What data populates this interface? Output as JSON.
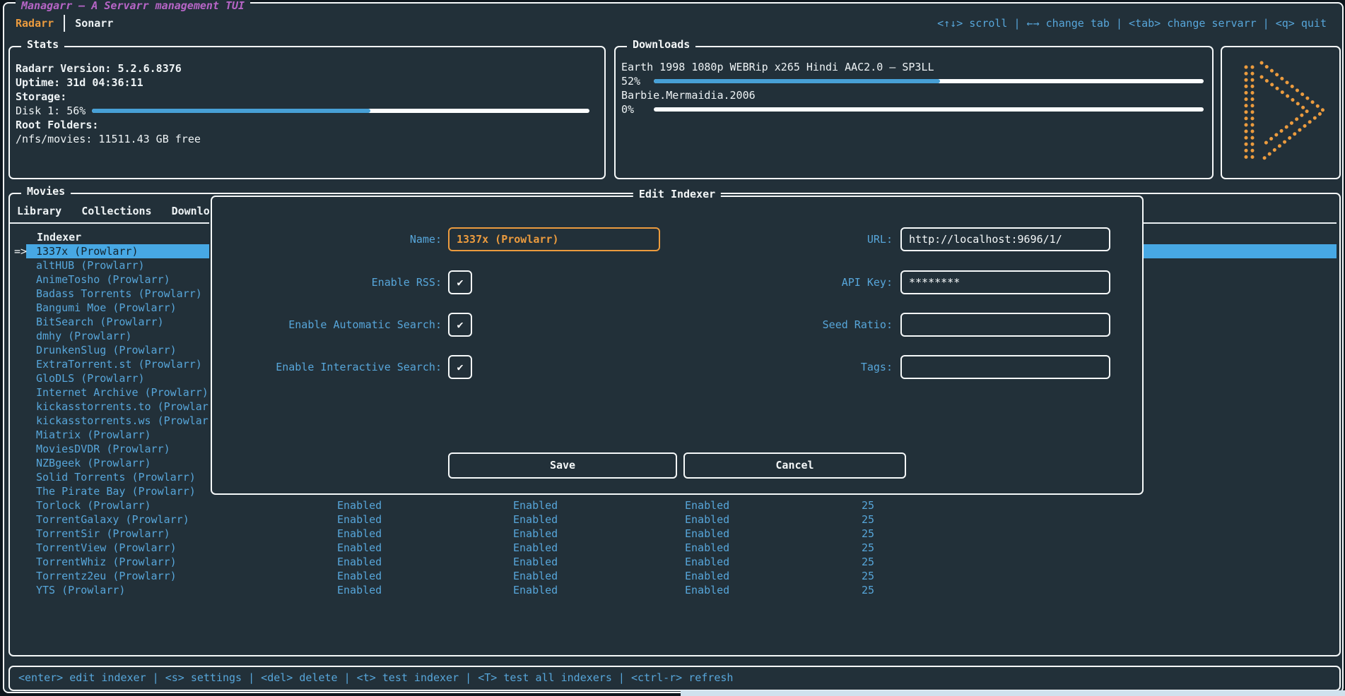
{
  "app": {
    "title": "Managarr – A Servarr management TUI",
    "tabs": [
      {
        "label": "Radarr",
        "active": true
      },
      {
        "label": "Sonarr",
        "active": false
      }
    ],
    "top_keybinds": "<↑↓> scroll | ←→ change tab | <tab> change servarr | <q> quit"
  },
  "stats": {
    "panel_title": "Stats",
    "version_line": "Radarr Version:  5.2.6.8376",
    "uptime_line": "Uptime: 31d 04:36:11",
    "storage_label": "Storage:",
    "disk_line": "Disk 1: 56%",
    "disk_percent": 56,
    "root_folders_label": "Root Folders:",
    "root_folder_line": "/nfs/movies: 11511.43 GB free"
  },
  "downloads": {
    "panel_title": "Downloads",
    "items": [
      {
        "name": "Earth 1998 1080p WEBRip x265 Hindi AAC2.0 – SP3LL",
        "percent_label": "52%",
        "percent": 52
      },
      {
        "name": "Barbie.Mermaidia.2006",
        "percent_label": "0%",
        "percent": 0
      }
    ]
  },
  "movies": {
    "panel_title": "Movies",
    "tabs": [
      "Library",
      "Collections",
      "Downlo"
    ],
    "table": {
      "indexer_header": "Indexer",
      "selection_marker": "=>",
      "selected_index": 0,
      "rows": [
        "1337x (Prowlarr)",
        "altHUB (Prowlarr)",
        "AnimeTosho (Prowlarr)",
        "Badass Torrents (Prowlarr)",
        "Bangumi Moe (Prowlarr)",
        "BitSearch (Prowlarr)",
        "dmhy (Prowlarr)",
        "DrunkenSlug (Prowlarr)",
        "ExtraTorrent.st (Prowlarr)",
        "GloDLS (Prowlarr)",
        "Internet Archive (Prowlarr)",
        "kickasstorrents.to (Prowlarr)",
        "kickasstorrents.ws (Prowlarr)",
        "Miatrix (Prowlarr)",
        "MoviesDVDR (Prowlarr)",
        "NZBgeek (Prowlarr)",
        "Solid Torrents (Prowlarr)",
        "The Pirate Bay (Prowlarr)",
        "Torlock (Prowlarr)",
        "TorrentGalaxy (Prowlarr)",
        "TorrentSir (Prowlarr)",
        "TorrentView (Prowlarr)",
        "TorrentWhiz (Prowlarr)",
        "Torrentz2eu (Prowlarr)",
        "YTS (Prowlarr)"
      ],
      "columns": {
        "rss": "Enabled",
        "automatic_search": "Enabled",
        "interactive_search": "Enabled",
        "priority": "25"
      },
      "columns_visible_from": 18
    }
  },
  "modal": {
    "title": "Edit Indexer",
    "fields": {
      "name": {
        "label": "Name:",
        "value": "1337x (Prowlarr)"
      },
      "url": {
        "label": "URL:",
        "value": "http://localhost:9696/1/"
      },
      "enable_rss": {
        "label": "Enable RSS:",
        "check": "✔"
      },
      "api_key": {
        "label": "API Key:",
        "value": "********"
      },
      "enable_automatic_search": {
        "label": "Enable Automatic Search:",
        "check": "✔"
      },
      "seed_ratio": {
        "label": "Seed Ratio:",
        "value": ""
      },
      "enable_interactive_search": {
        "label": "Enable Interactive Search:",
        "check": "✔"
      },
      "tags": {
        "label": "Tags:",
        "value": ""
      }
    },
    "buttons": {
      "save": "Save",
      "cancel": "Cancel"
    }
  },
  "footer": {
    "keybinds": "<enter> edit indexer | <s> settings | <del> delete | <t> test indexer | <T> test all indexers | <ctrl-r> refresh"
  },
  "colors": {
    "background": "#223039",
    "border": "#f6f9fa",
    "accent_blue": "#57a6da",
    "accent_orange": "#eb9b3e",
    "accent_purple": "#b665c6",
    "highlight_bg": "#47a8e4",
    "highlight_fg": "#13242e",
    "gauge_fill": "#47a0d6",
    "gauge_track": "#fbfdfe"
  }
}
